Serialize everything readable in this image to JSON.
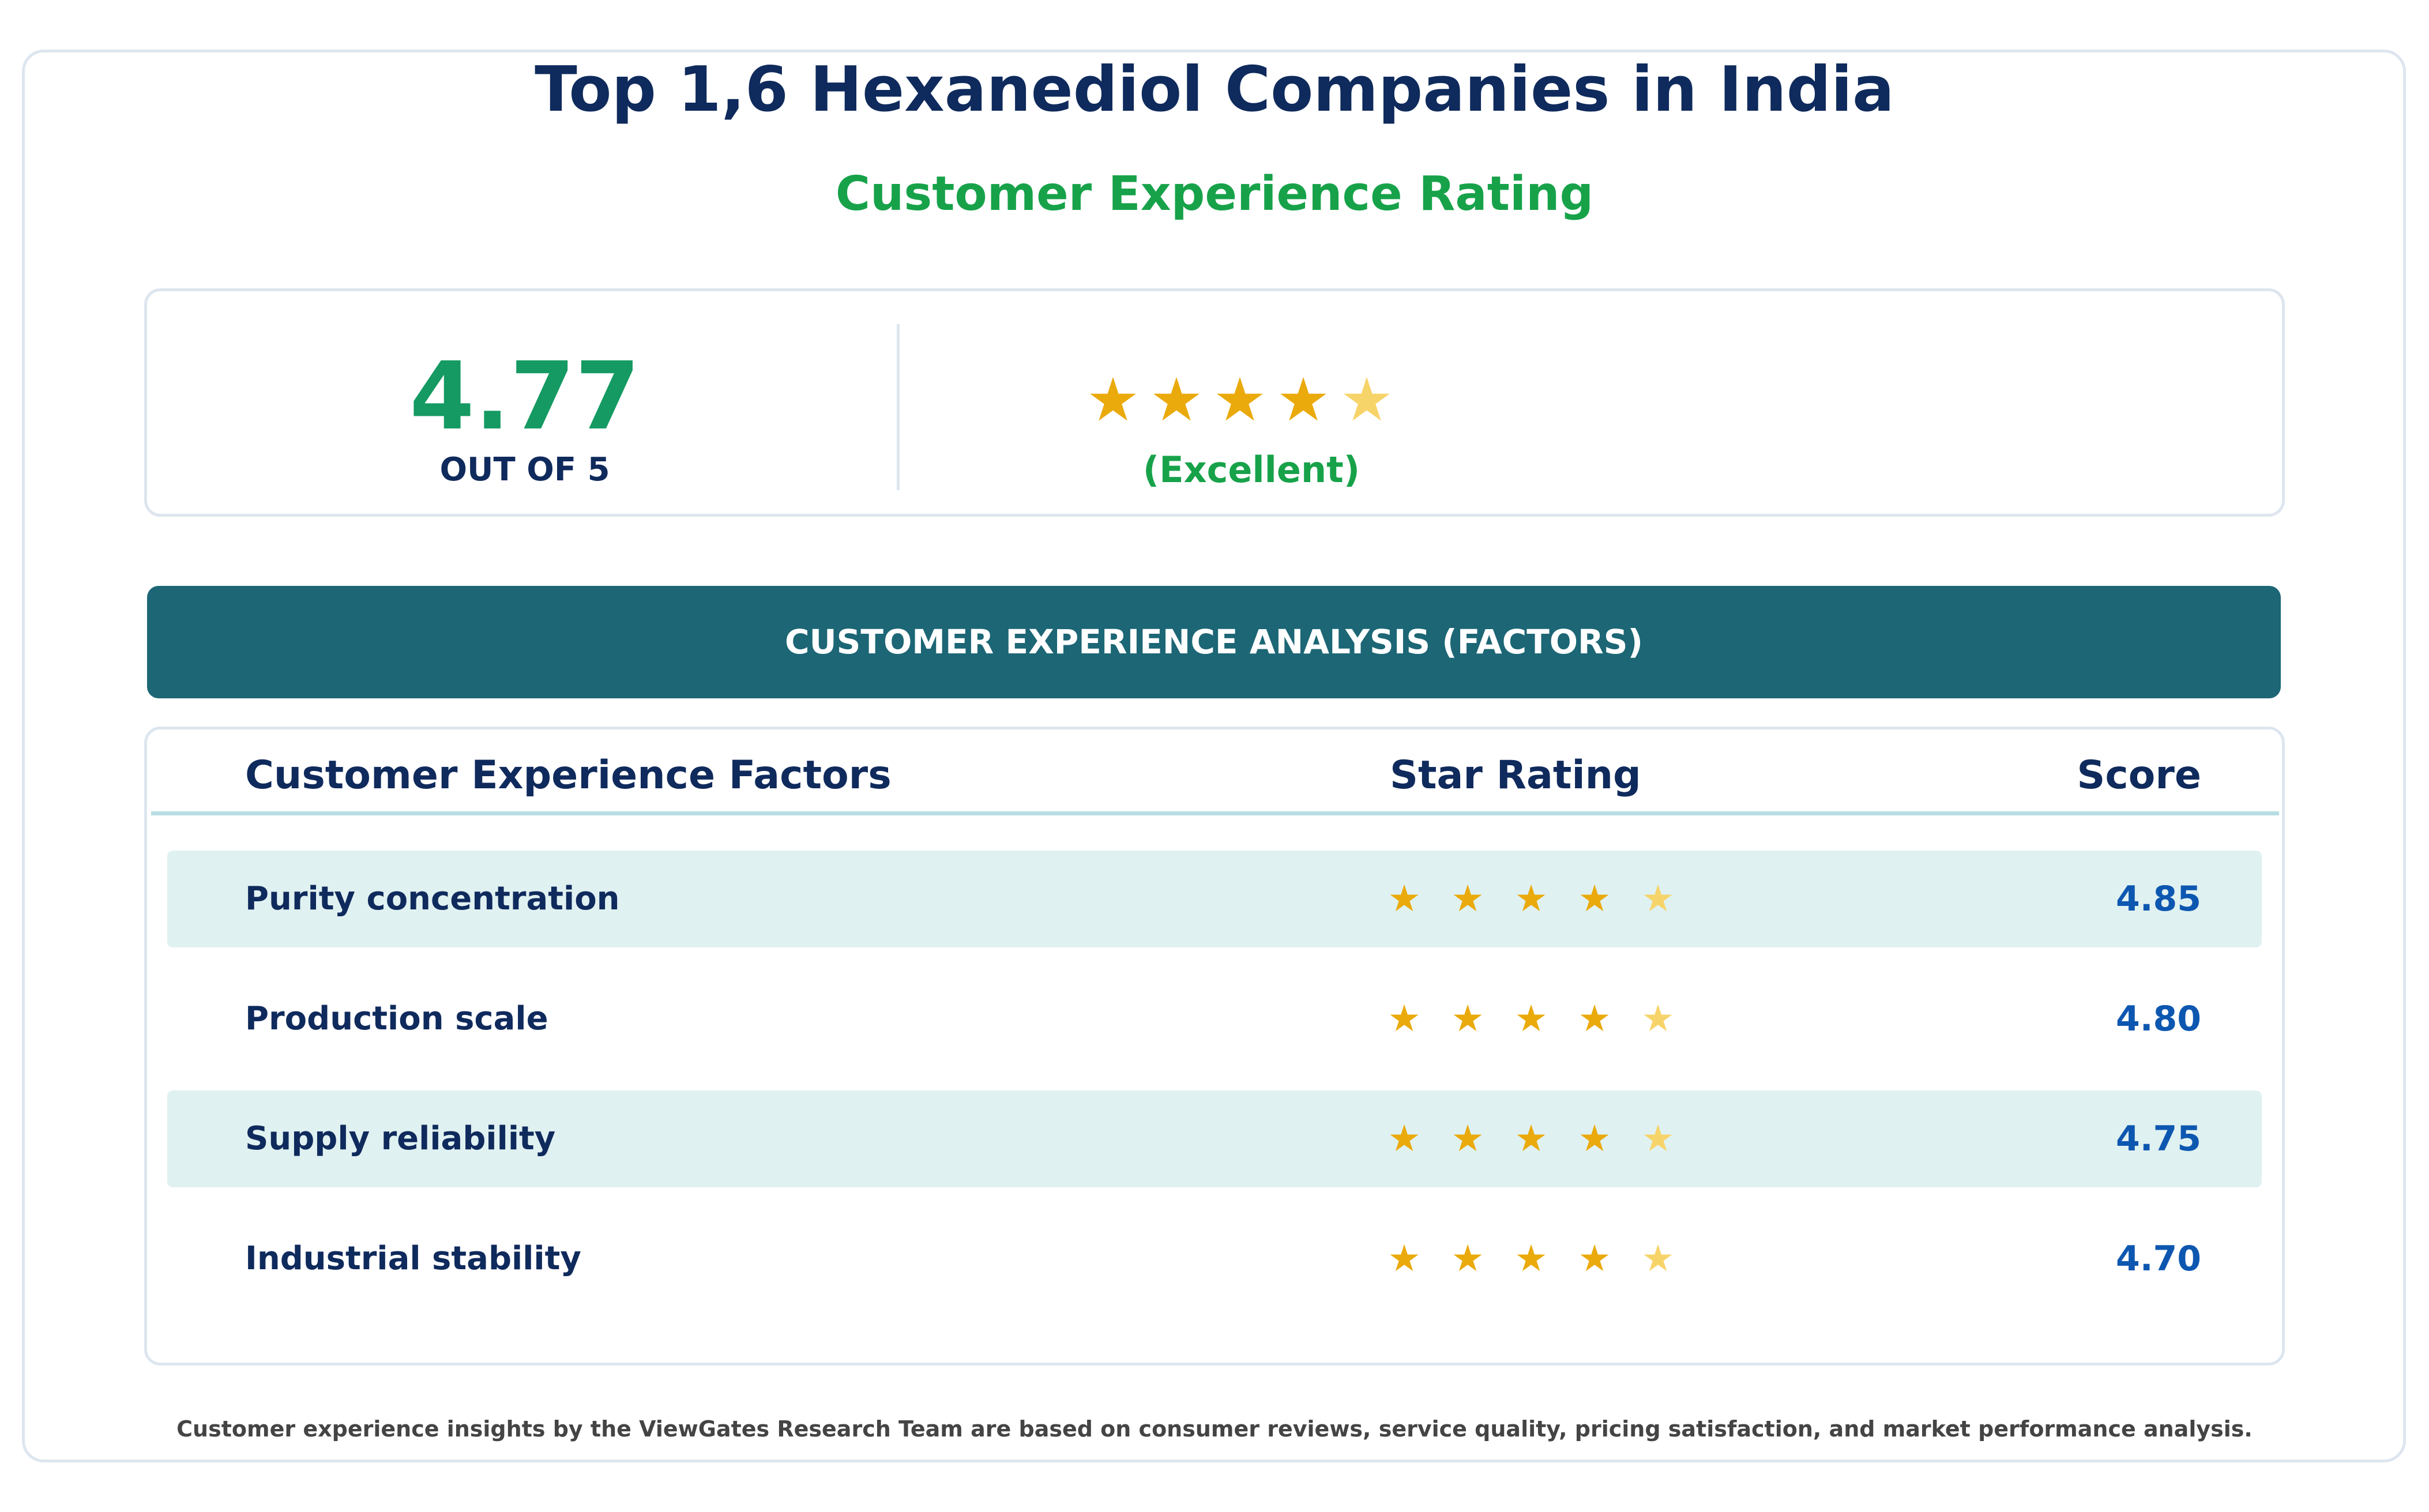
{
  "header": {
    "title": "Top 1,6 Hexanediol Companies in India",
    "subtitle": "Customer Experience Rating"
  },
  "summary": {
    "score": "4.77",
    "out_of": "OUT OF 5",
    "rating_value": 4.77,
    "label": "(Excellent)",
    "star_glyph": "★"
  },
  "analysis": {
    "banner": "CUSTOMER EXPERIENCE ANALYSIS (FACTORS)",
    "columns": {
      "factor": "Customer Experience Factors",
      "rating": "Star Rating",
      "score": "Score"
    },
    "rows": [
      {
        "factor": "Purity concentration",
        "score": "4.85",
        "rating_value": 4.85
      },
      {
        "factor": "Production scale",
        "score": "4.80",
        "rating_value": 4.8
      },
      {
        "factor": "Supply reliability",
        "score": "4.75",
        "rating_value": 4.75
      },
      {
        "factor": "Industrial stability",
        "score": "4.70",
        "rating_value": 4.7
      }
    ]
  },
  "footer": {
    "note": "Customer experience insights by the ViewGates Research Team are based on consumer reviews, service quality, pricing satisfaction, and market performance analysis."
  },
  "colors": {
    "title": "#0f2a5c",
    "accent_green": "#17a24a",
    "score_green": "#149a62",
    "banner": "#1c6675",
    "star_full": "#eaaa0c",
    "star_partial": "#f7d46a",
    "score_blue": "#0d57b0"
  }
}
